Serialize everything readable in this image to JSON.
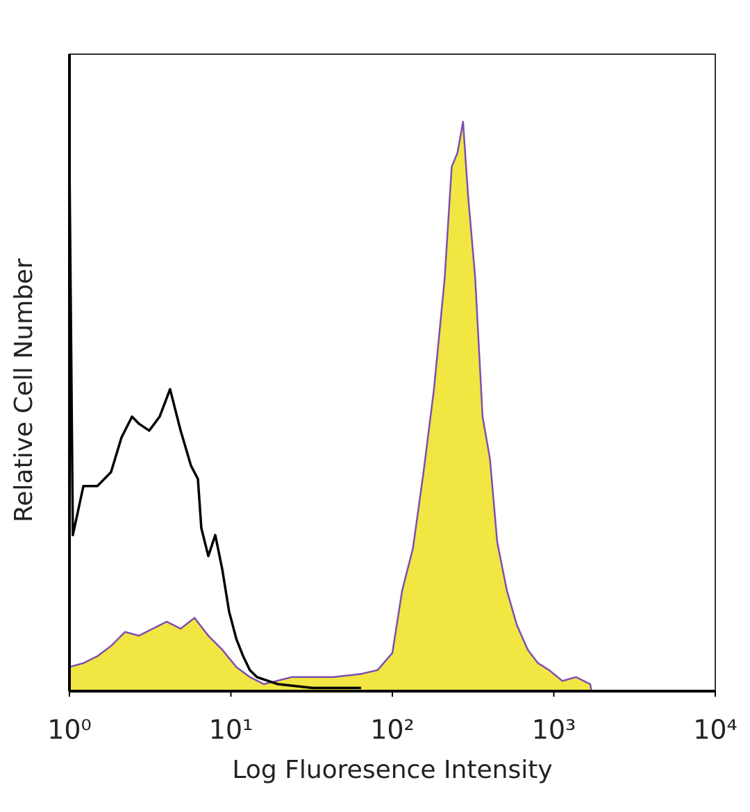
{
  "chart_data": {
    "type": "line",
    "x_label": "Log Fluoresence Intensity",
    "y_label": "Relative Cell Number",
    "xscale": "log",
    "xlim": [
      1,
      10000
    ],
    "ylim": [
      0,
      100
    ],
    "xticks": [
      {
        "value": 1,
        "label": "10⁰"
      },
      {
        "value": 10,
        "label": "10¹"
      },
      {
        "value": 100,
        "label": "10²"
      },
      {
        "value": 1000,
        "label": "10³"
      },
      {
        "value": 10000,
        "label": "10⁴"
      }
    ],
    "series": [
      {
        "color": "#7b4fb0",
        "fill": "#f2e642",
        "x": [
          1,
          1.22,
          1.49,
          1.81,
          2.21,
          2.69,
          3.28,
          4.0,
          4.88,
          5.95,
          7.25,
          8.84,
          10.8,
          13.1,
          16.0,
          23.8,
          43,
          64,
          81,
          100,
          115,
          134,
          156,
          181,
          211,
          233,
          253,
          274,
          294,
          326,
          362,
          402,
          446,
          512,
          590,
          690,
          798,
          935,
          1130,
          1370,
          1680,
          1710
        ],
        "values": [
          3.8,
          4.4,
          5.5,
          7.1,
          9.3,
          8.7,
          9.8,
          10.9,
          9.8,
          11.5,
          8.7,
          6.5,
          3.8,
          2.2,
          1.1,
          2.2,
          2.2,
          2.7,
          3.3,
          6.0,
          15.8,
          22.4,
          34.4,
          47.4,
          64.9,
          82.3,
          84.5,
          89.4,
          78,
          64.9,
          43.1,
          36.5,
          23.4,
          15.8,
          10.4,
          6.5,
          4.4,
          3.3,
          1.6,
          2.2,
          1.1,
          0
        ]
      },
      {
        "color": "#000000",
        "x": [
          1,
          1,
          1.05,
          1.22,
          1.49,
          1.81,
          2.1,
          2.44,
          2.69,
          3.12,
          3.62,
          4.2,
          4.88,
          5.66,
          6.25,
          6.56,
          7.25,
          8.0,
          8.84,
          9.75,
          10.8,
          11.9,
          13.1,
          14.5,
          19.5,
          32,
          64
        ],
        "values": [
          0,
          83.4,
          24.5,
          32.2,
          32.2,
          34.4,
          39.8,
          43.1,
          42,
          40.9,
          43.1,
          47.4,
          40.9,
          35.4,
          33.3,
          25.6,
          21.2,
          24.5,
          19.1,
          12.5,
          8.2,
          5.5,
          3.3,
          2.2,
          1.1,
          0.5,
          0.5
        ]
      }
    ]
  }
}
